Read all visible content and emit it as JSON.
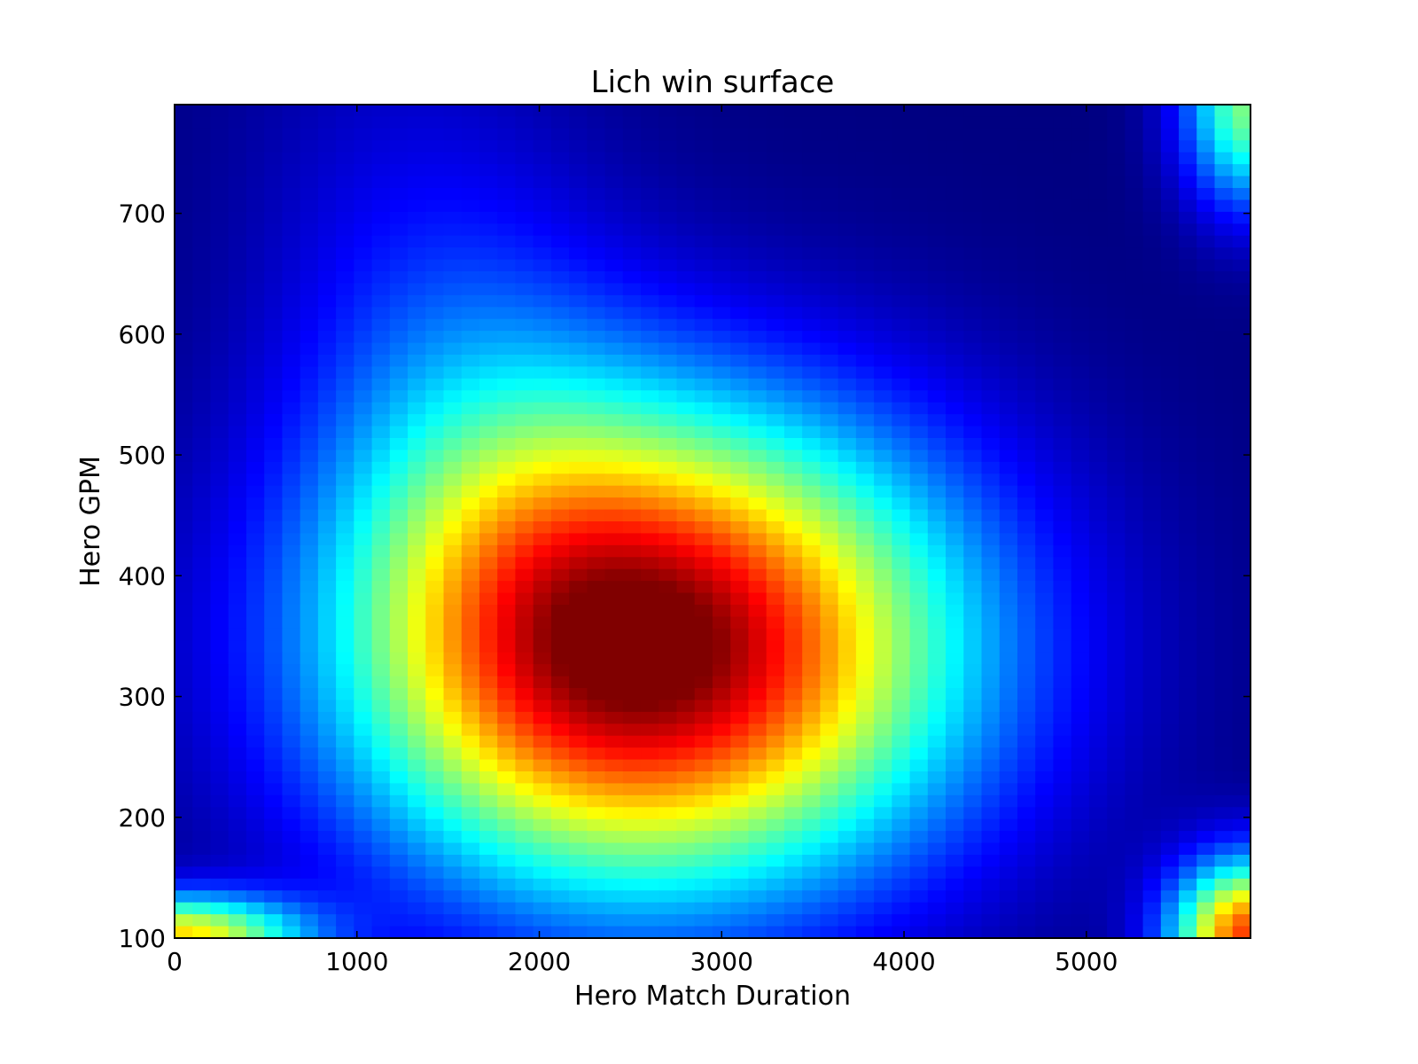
{
  "chart_data": {
    "type": "heatmap",
    "title": "Lich win surface",
    "xlabel": "Hero Match Duration",
    "ylabel": "Hero GPM",
    "xlim": [
      0,
      5900
    ],
    "ylim": [
      100,
      790
    ],
    "xticks": [
      0,
      1000,
      2000,
      3000,
      4000,
      5000
    ],
    "yticks": [
      100,
      200,
      300,
      400,
      500,
      600,
      700
    ],
    "colormap": "jet",
    "grid": false,
    "legend": "none",
    "grid_cells": {
      "x": 60,
      "y": 70
    },
    "surface_components": [
      {
        "name": "central peak",
        "x": 2650,
        "y": 340,
        "amplitude": 1.0
      },
      {
        "name": "bottom-right corner",
        "x": 5900,
        "y": 100,
        "amplitude": 0.82
      },
      {
        "name": "top-right corner",
        "x": 5900,
        "y": 790,
        "amplitude": 0.5
      },
      {
        "name": "bottom-left corner",
        "x": 0,
        "y": 100,
        "amplitude": 0.65
      }
    ]
  }
}
